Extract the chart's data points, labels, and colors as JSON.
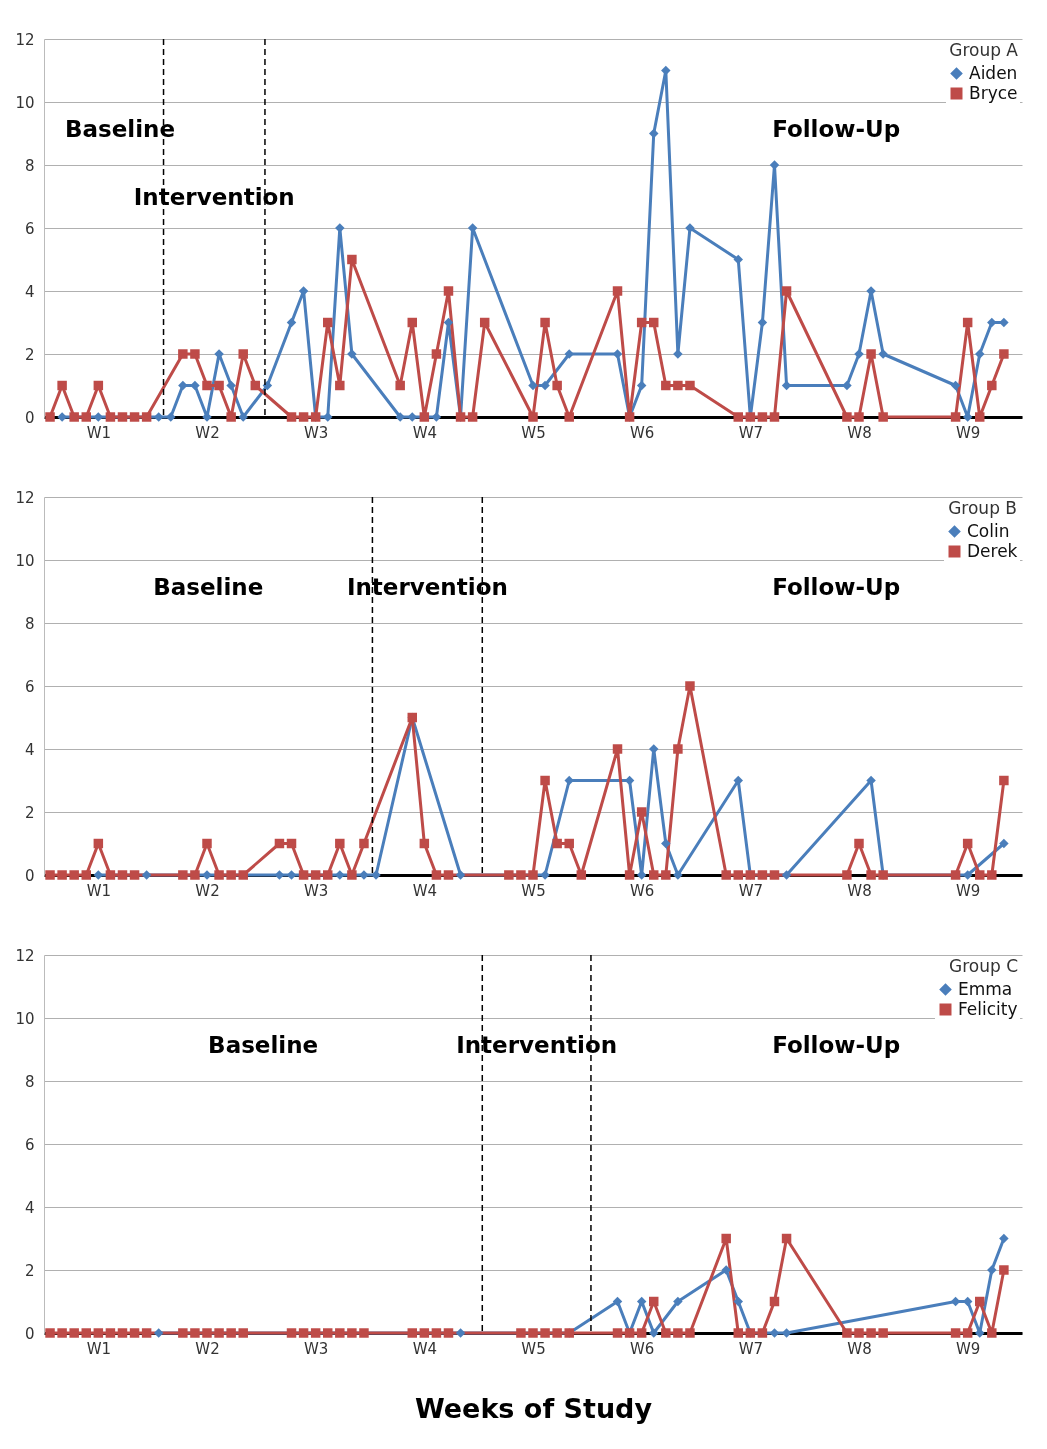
{
  "chart_data": [
    {
      "type": "line",
      "legend_title": "Group A",
      "legend": "top right",
      "grid": "y",
      "line_style": "solid",
      "ylim": [
        0,
        12
      ],
      "yticks": [
        0,
        2,
        4,
        6,
        8,
        10,
        12
      ],
      "categories": [
        null,
        null,
        null,
        null,
        "W1",
        null,
        null,
        null,
        null,
        null,
        null,
        null,
        null,
        "W2",
        null,
        null,
        null,
        null,
        null,
        null,
        null,
        null,
        "W3",
        null,
        null,
        null,
        null,
        null,
        null,
        null,
        null,
        "W4",
        null,
        null,
        null,
        null,
        null,
        null,
        null,
        null,
        "W5",
        null,
        null,
        null,
        null,
        null,
        null,
        null,
        null,
        "W6",
        null,
        null,
        null,
        null,
        null,
        null,
        null,
        null,
        "W7",
        null,
        null,
        null,
        null,
        null,
        null,
        null,
        null,
        "W8",
        null,
        null,
        null,
        null,
        null,
        null,
        null,
        null,
        "W9",
        null,
        null,
        null,
        null
      ],
      "series": [
        {
          "name": "Aiden",
          "color": "#4a7ebb",
          "marker": "diamond",
          "values": [
            null,
            0,
            null,
            null,
            0,
            null,
            null,
            null,
            null,
            0,
            0,
            1,
            1,
            0,
            2,
            1,
            0,
            null,
            1,
            null,
            3,
            4,
            0,
            0,
            6,
            2,
            null,
            null,
            null,
            0,
            0,
            null,
            0,
            3,
            0,
            6,
            null,
            null,
            null,
            null,
            1,
            1,
            null,
            2,
            null,
            null,
            null,
            2,
            0,
            1,
            9,
            11,
            2,
            6,
            null,
            null,
            null,
            5,
            0,
            3,
            8,
            1,
            null,
            null,
            null,
            null,
            1,
            2,
            4,
            2,
            null,
            null,
            null,
            null,
            null,
            1,
            0,
            2,
            3,
            3,
            null
          ]
        },
        {
          "name": "Bryce",
          "color": "#be4b48",
          "marker": "square",
          "values": [
            0,
            1,
            0,
            0,
            1,
            0,
            0,
            0,
            0,
            null,
            null,
            2,
            2,
            1,
            1,
            0,
            2,
            1,
            null,
            null,
            0,
            0,
            0,
            3,
            1,
            5,
            null,
            null,
            null,
            1,
            3,
            0,
            2,
            4,
            0,
            0,
            3,
            null,
            null,
            null,
            0,
            3,
            1,
            0,
            null,
            null,
            null,
            4,
            0,
            3,
            3,
            1,
            1,
            1,
            null,
            null,
            null,
            0,
            0,
            0,
            0,
            4,
            null,
            null,
            null,
            null,
            0,
            0,
            2,
            0,
            null,
            null,
            null,
            null,
            null,
            0,
            3,
            0,
            1,
            2,
            null
          ]
        }
      ],
      "annotations": [
        "Baseline",
        "Intervention",
        "Follow-Up"
      ]
    },
    {
      "type": "line",
      "legend_title": "Group B",
      "legend": "top right",
      "grid": "y",
      "line_style": "solid",
      "ylim": [
        0,
        12
      ],
      "yticks": [
        0,
        2,
        4,
        6,
        8,
        10,
        12
      ],
      "categories": [
        null,
        null,
        null,
        null,
        "W1",
        null,
        null,
        null,
        null,
        null,
        null,
        null,
        null,
        "W2",
        null,
        null,
        null,
        null,
        null,
        null,
        null,
        null,
        "W3",
        null,
        null,
        null,
        null,
        null,
        null,
        null,
        null,
        "W4",
        null,
        null,
        null,
        null,
        null,
        null,
        null,
        null,
        "W5",
        null,
        null,
        null,
        null,
        null,
        null,
        null,
        null,
        "W6",
        null,
        null,
        null,
        null,
        null,
        null,
        null,
        null,
        "W7",
        null,
        null,
        null,
        null,
        null,
        null,
        null,
        null,
        "W8",
        null,
        null,
        null,
        null,
        null,
        null,
        null,
        null,
        "W9",
        null,
        null,
        null,
        null
      ],
      "series": [
        {
          "name": "Colin",
          "color": "#4a7ebb",
          "marker": "diamond",
          "values": [
            null,
            null,
            null,
            null,
            0,
            null,
            null,
            null,
            0,
            null,
            null,
            null,
            null,
            0,
            null,
            null,
            null,
            null,
            null,
            0,
            0,
            null,
            null,
            null,
            0,
            null,
            0,
            0,
            null,
            null,
            5,
            null,
            null,
            null,
            0,
            null,
            null,
            null,
            null,
            null,
            null,
            0,
            null,
            3,
            null,
            null,
            null,
            null,
            3,
            0,
            4,
            1,
            0,
            null,
            null,
            null,
            null,
            3,
            0,
            null,
            null,
            0,
            null,
            null,
            null,
            null,
            null,
            null,
            3,
            0,
            null,
            null,
            null,
            null,
            null,
            null,
            0,
            null,
            null,
            1,
            null
          ]
        },
        {
          "name": "Derek",
          "color": "#be4b48",
          "marker": "square",
          "values": [
            0,
            0,
            0,
            0,
            1,
            0,
            0,
            0,
            null,
            null,
            null,
            0,
            0,
            1,
            0,
            0,
            0,
            null,
            null,
            1,
            1,
            0,
            0,
            0,
            1,
            0,
            1,
            null,
            null,
            null,
            5,
            1,
            0,
            0,
            null,
            null,
            null,
            null,
            0,
            0,
            0,
            3,
            1,
            1,
            0,
            null,
            null,
            4,
            0,
            2,
            0,
            0,
            4,
            6,
            null,
            null,
            0,
            0,
            0,
            0,
            0,
            null,
            null,
            null,
            null,
            null,
            0,
            1,
            0,
            0,
            null,
            null,
            null,
            null,
            null,
            0,
            1,
            0,
            0,
            3,
            null
          ]
        }
      ],
      "annotations": [
        "Baseline",
        "Intervention",
        "Follow-Up"
      ]
    },
    {
      "type": "line",
      "legend_title": "Group C",
      "legend": "top right",
      "grid": "y",
      "line_style": "solid",
      "ylim": [
        0,
        12
      ],
      "yticks": [
        0,
        2,
        4,
        6,
        8,
        10,
        12
      ],
      "xlabel": "Weeks of Study",
      "categories": [
        null,
        null,
        null,
        null,
        "W1",
        null,
        null,
        null,
        null,
        null,
        null,
        null,
        null,
        "W2",
        null,
        null,
        null,
        null,
        null,
        null,
        null,
        null,
        "W3",
        null,
        null,
        null,
        null,
        null,
        null,
        null,
        null,
        "W4",
        null,
        null,
        null,
        null,
        null,
        null,
        null,
        null,
        "W5",
        null,
        null,
        null,
        null,
        null,
        null,
        null,
        null,
        "W6",
        null,
        null,
        null,
        null,
        null,
        null,
        null,
        null,
        "W7",
        null,
        null,
        null,
        null,
        null,
        null,
        null,
        null,
        "W8",
        null,
        null,
        null,
        null,
        null,
        null,
        null,
        null,
        "W9",
        null,
        null,
        null,
        null
      ],
      "series": [
        {
          "name": "Emma",
          "color": "#4a7ebb",
          "marker": "diamond",
          "values": [
            null,
            null,
            null,
            null,
            null,
            null,
            null,
            null,
            null,
            0,
            null,
            null,
            null,
            null,
            null,
            null,
            null,
            null,
            null,
            null,
            null,
            null,
            null,
            null,
            null,
            null,
            null,
            null,
            null,
            null,
            null,
            null,
            null,
            null,
            0,
            null,
            null,
            null,
            null,
            null,
            null,
            null,
            null,
            0,
            null,
            null,
            null,
            1,
            0,
            1,
            0,
            null,
            1,
            null,
            null,
            null,
            2,
            1,
            0,
            null,
            0,
            0,
            null,
            null,
            null,
            null,
            null,
            null,
            null,
            null,
            null,
            null,
            null,
            null,
            null,
            1,
            1,
            0,
            2,
            3,
            null
          ]
        },
        {
          "name": "Felicity",
          "color": "#be4b48",
          "marker": "square",
          "values": [
            0,
            0,
            0,
            0,
            0,
            0,
            0,
            0,
            0,
            null,
            null,
            0,
            0,
            0,
            0,
            0,
            0,
            null,
            null,
            null,
            0,
            0,
            0,
            0,
            0,
            0,
            0,
            null,
            null,
            null,
            0,
            0,
            0,
            0,
            null,
            null,
            null,
            null,
            null,
            0,
            0,
            0,
            0,
            0,
            null,
            null,
            null,
            0,
            0,
            0,
            1,
            0,
            0,
            0,
            null,
            null,
            3,
            0,
            0,
            0,
            1,
            3,
            null,
            null,
            null,
            null,
            0,
            0,
            0,
            0,
            null,
            null,
            null,
            null,
            null,
            0,
            0,
            1,
            0,
            2,
            null
          ]
        }
      ],
      "annotations": [
        "Baseline",
        "Intervention",
        "Follow-Up"
      ]
    }
  ]
}
